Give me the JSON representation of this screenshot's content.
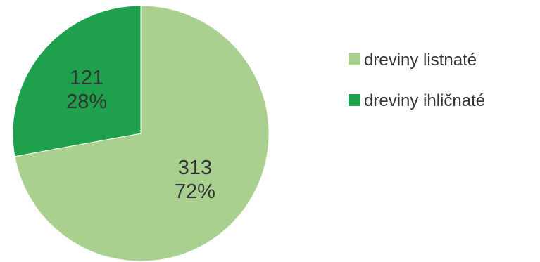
{
  "chart_data": {
    "type": "pie",
    "slices": [
      {
        "name": "dreviny listnaté",
        "value": 313,
        "percent_label": "72%",
        "value_label": "313",
        "color": "#a9d08e"
      },
      {
        "name": "dreviny ihličnaté",
        "value": 121,
        "percent_label": "28%",
        "value_label": "121",
        "color": "#1ea04c"
      }
    ],
    "legend_position": "right",
    "start_angle_deg": 0,
    "direction": "clockwise"
  }
}
